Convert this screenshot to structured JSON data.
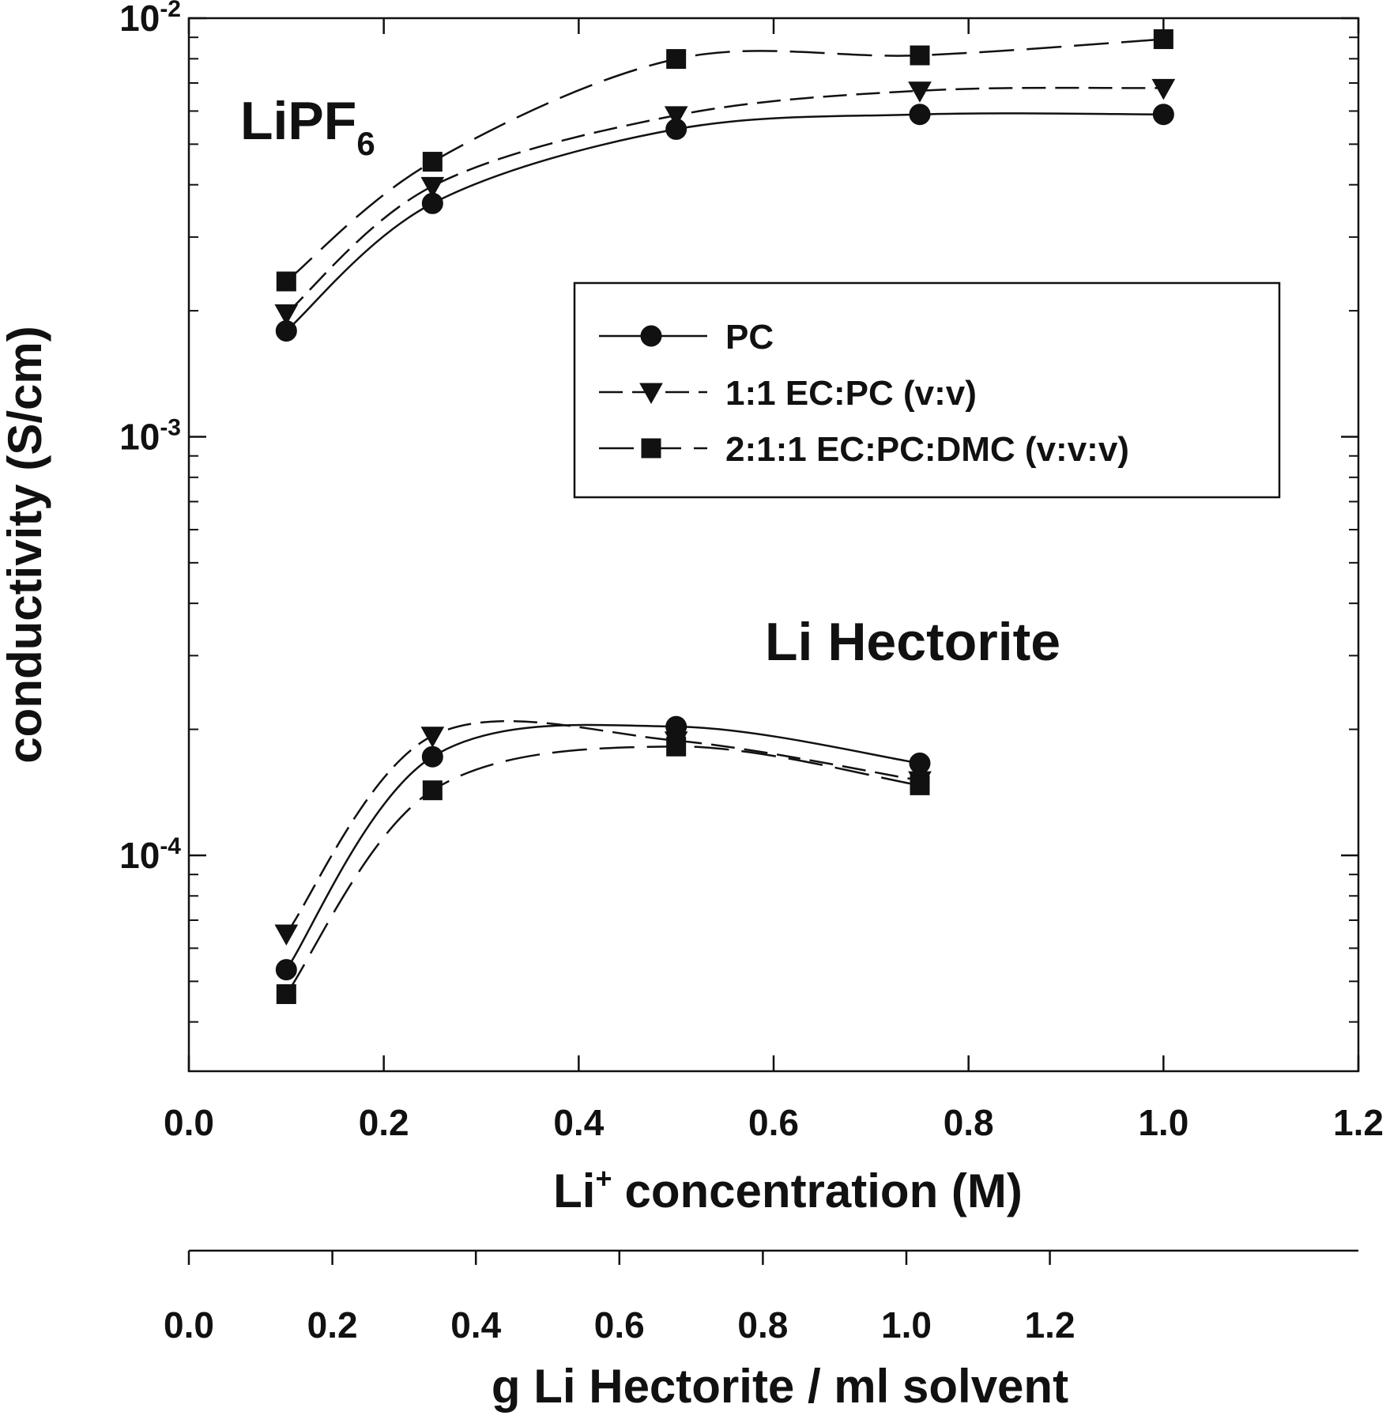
{
  "chart_data": {
    "type": "line",
    "ylog": true,
    "xlim": [
      0,
      1.2
    ],
    "xticks": [
      {
        "value": 0,
        "label": "0.0"
      },
      0.2,
      0.4,
      0.6,
      0.8,
      {
        "value": 1,
        "label": "1.0"
      },
      1.2
    ],
    "ylim": [
      3.05e-05,
      0.01
    ],
    "yticks": [
      {
        "value": 0.0001,
        "label": "10",
        "sup": "-4"
      },
      {
        "value": 0.001,
        "label": "10",
        "sup": "-3"
      },
      {
        "value": 0.01,
        "label": "10",
        "sup": "-2"
      }
    ],
    "yticks_minor": [
      4e-05,
      5e-05,
      6e-05,
      7e-05,
      8e-05,
      9e-05,
      0.0002,
      0.0003,
      0.0004,
      0.0005,
      0.0006,
      0.0007,
      0.0008,
      0.0009,
      0.002,
      0.003,
      0.004,
      0.005,
      0.006,
      0.007,
      0.008,
      0.009
    ],
    "xlabel": {
      "text": "Li",
      "sup": "+",
      "rest": "concentration (M)"
    },
    "ylabel": "conductivity (S/cm)",
    "x2lim": [
      0,
      1.63
    ],
    "x2ticks": [
      {
        "value": 0,
        "label": "0.0"
      },
      0.2,
      0.4,
      0.6,
      0.8,
      {
        "value": 1,
        "label": "1.0"
      },
      1.2
    ],
    "x2label": "g Li Hectorite / ml solvent",
    "color": "#111111",
    "legend": [
      {
        "name": "PC",
        "marker": "circle",
        "dash": "solid"
      },
      {
        "name": "1:1 EC:PC (v:v)",
        "marker": "triangle-down",
        "dash": "dashed"
      },
      {
        "name": "2:1:1 EC:PC:DMC (v:v:v)",
        "marker": "square",
        "dash": "long-dashed"
      }
    ],
    "groups": [
      {
        "label": {
          "text": "LiPF",
          "sub": "6"
        },
        "x": [
          0.1,
          0.25,
          0.5,
          0.75,
          1.0
        ],
        "series": [
          {
            "values": [
              0.00179,
              0.00361,
              0.00543,
              0.00589,
              0.00589
            ]
          },
          {
            "values": [
              0.00197,
              0.00397,
              0.00586,
              0.00671,
              0.00681
            ]
          },
          {
            "values": [
              0.00235,
              0.00454,
              0.00799,
              0.00815,
              0.00891
            ]
          }
        ]
      },
      {
        "label": {
          "text": "Li Hectorite"
        },
        "x": [
          0.1,
          0.25,
          0.5,
          0.75
        ],
        "series": [
          {
            "values": [
              5.33e-05,
              0.000172,
              0.000203,
              0.000166
            ]
          },
          {
            "values": [
              6.5e-05,
              0.000193,
              0.000188,
              0.000151
            ]
          },
          {
            "values": [
              4.66e-05,
              0.000143,
              0.000182,
              0.000147
            ]
          }
        ]
      }
    ]
  }
}
